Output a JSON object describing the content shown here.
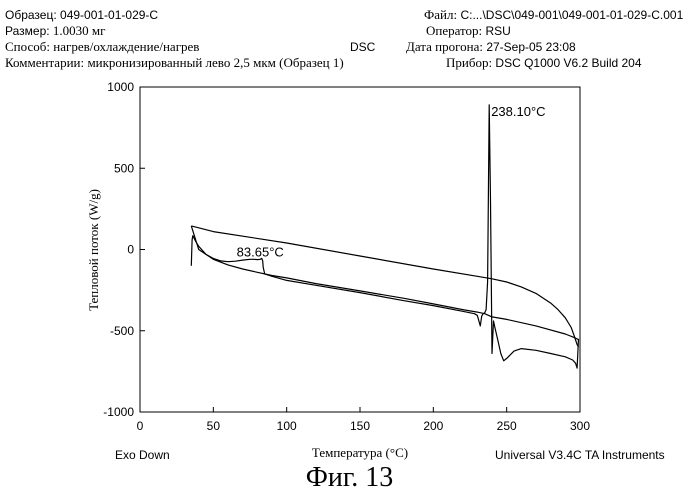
{
  "header": {
    "sample_label": "Образец:",
    "sample_value": "049-001-01-029-C",
    "size_label": "Размер:",
    "size_value": "1.0030  мг",
    "method_label": "Способ:",
    "method_value": "нагрев/охлаждение/нагрев",
    "comment_label": "Комментарии:",
    "comment_value": "микронизированный лево 2,5 мкм (Образец 1)",
    "center_label": "DSC",
    "file_label": "Файл:",
    "file_value": "C:...\\DSC\\049-001\\049-001-01-029-C.001",
    "operator_label": "Оператор:",
    "operator_value": "RSU",
    "run_date_label": "Дата прогона:",
    "run_date_value": "27-Sep-05 23:08",
    "instrument_label": "Прибор:",
    "instrument_value": "DSC Q1000 V6.2 Build 204"
  },
  "footer": {
    "exo": "Exo Down",
    "software": "Universal V3.4C TA Instruments",
    "figure": "Фиг. 13"
  },
  "chart_data": {
    "type": "line",
    "xlabel": "Температура (°C)",
    "ylabel": "Тепловой поток (W/g)",
    "xlim": [
      0,
      300
    ],
    "ylim": [
      -1000,
      1000
    ],
    "x_ticks": [
      0,
      50,
      100,
      150,
      200,
      250,
      300
    ],
    "y_ticks": [
      1000,
      500,
      0,
      -500,
      -1000
    ],
    "annotations": [
      {
        "text": "83.65°C",
        "x": 83.65,
        "y": -55
      },
      {
        "text": "238.10°C",
        "x": 238.1,
        "y": 890
      }
    ],
    "series": [
      {
        "x": [
          35,
          35.5,
          36,
          38,
          40,
          45,
          50,
          55,
          60,
          65,
          70,
          75,
          78,
          80,
          82,
          83,
          83.65,
          84,
          85,
          90,
          100,
          120,
          150,
          180,
          200,
          220,
          228,
          230,
          232,
          233,
          234,
          235,
          236,
          237,
          238.1,
          239,
          240,
          241,
          242,
          244,
          246,
          248,
          250,
          255,
          260,
          270,
          280,
          290,
          295,
          297,
          298,
          299
        ],
        "y": [
          -100,
          60,
          85,
          50,
          20,
          -30,
          -55,
          -70,
          -75,
          -72,
          -65,
          -60,
          -60,
          -62,
          -60,
          -55,
          -70,
          -110,
          -150,
          -165,
          -190,
          -220,
          -265,
          -315,
          -345,
          -380,
          -395,
          -405,
          -470,
          -410,
          -395,
          -390,
          -370,
          -200,
          890,
          300,
          -640,
          -440,
          -480,
          -560,
          -640,
          -685,
          -670,
          -625,
          -610,
          -620,
          -640,
          -660,
          -680,
          -700,
          -730,
          -550
        ]
      },
      {
        "x": [
          299,
          298,
          296,
          294,
          290,
          285,
          280,
          270,
          260,
          250,
          240,
          230,
          200,
          150,
          100,
          50,
          35
        ],
        "y": [
          -600,
          -585,
          -530,
          -480,
          -420,
          -370,
          -330,
          -270,
          -230,
          -200,
          -180,
          -165,
          -120,
          -40,
          40,
          110,
          145
        ]
      },
      {
        "x": [
          35,
          40,
          50,
          60,
          70,
          80,
          90,
          100,
          120,
          150,
          180,
          200,
          220,
          230,
          235,
          240,
          250,
          270,
          290,
          297,
          299
        ],
        "y": [
          145,
          0,
          -60,
          -95,
          -120,
          -140,
          -160,
          -175,
          -210,
          -255,
          -300,
          -335,
          -370,
          -385,
          -395,
          -415,
          -430,
          -470,
          -520,
          -545,
          -555
        ]
      }
    ]
  }
}
